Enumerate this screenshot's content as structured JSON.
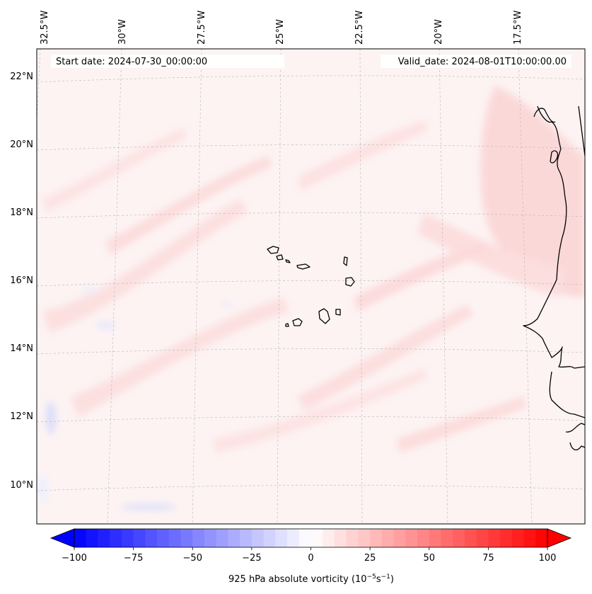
{
  "map": {
    "start_date": "Start date: 2024-07-30_00:00:00",
    "valid_date": "Valid_date: 2024-08-01T10:00:00.00",
    "lon_labels": [
      "32.5°W",
      "30°W",
      "27.5°W",
      "25°W",
      "22.5°W",
      "20°W",
      "17.5°W"
    ],
    "lat_labels": [
      "22°N",
      "20°N",
      "18°N",
      "16°N",
      "14°N",
      "12°N",
      "10°N"
    ],
    "field": "925 hPa absolute vorticity",
    "units_text": "925 hPa absolute vorticity (10",
    "units_exp1": "−5",
    "units_mid": "s",
    "units_exp2": "−1",
    "units_close": ")"
  },
  "colorbar": {
    "ticks": [
      -100,
      -75,
      -50,
      -25,
      0,
      25,
      50,
      75,
      100
    ],
    "tick_labels": [
      "−100",
      "−75",
      "−50",
      "−25",
      "0",
      "25",
      "50",
      "75",
      "100"
    ],
    "min": -100,
    "max": 100,
    "step": 5,
    "extend": "both",
    "colormap": "bwr",
    "neg_color": "#0000ff",
    "zero_color": "#ffffff",
    "pos_color": "#ff0000"
  }
}
